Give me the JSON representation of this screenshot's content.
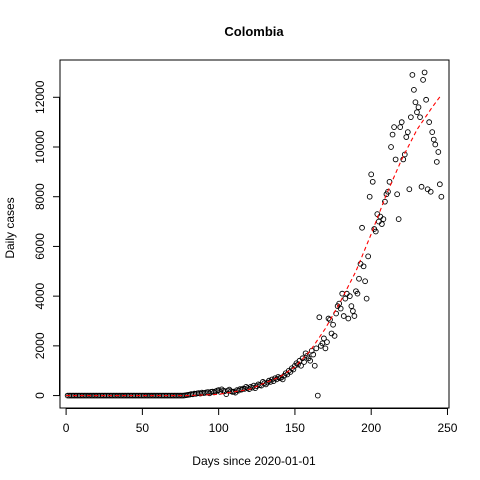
{
  "chart_data": {
    "type": "scatter",
    "title": "Colombia",
    "xlabel": "Days since 2020-01-01",
    "ylabel": "Daily cases",
    "xlim": [
      -4,
      251
    ],
    "ylim": [
      -500,
      13500
    ],
    "xticks": [
      0,
      50,
      100,
      150,
      200,
      250
    ],
    "yticks": [
      0,
      2000,
      4000,
      6000,
      8000,
      10000,
      12000
    ],
    "x_tick_labels": [
      "0",
      "50",
      "100",
      "150",
      "200",
      "250"
    ],
    "y_tick_labels": [
      "0",
      "2000",
      "4000",
      "6000",
      "8000",
      "10000",
      "12000"
    ],
    "grid": false,
    "points": [
      [
        1,
        0
      ],
      [
        2,
        0
      ],
      [
        3,
        0
      ],
      [
        4,
        0
      ],
      [
        5,
        0
      ],
      [
        6,
        0
      ],
      [
        7,
        0
      ],
      [
        8,
        0
      ],
      [
        9,
        0
      ],
      [
        10,
        0
      ],
      [
        11,
        0
      ],
      [
        12,
        0
      ],
      [
        13,
        0
      ],
      [
        14,
        0
      ],
      [
        15,
        0
      ],
      [
        16,
        0
      ],
      [
        17,
        0
      ],
      [
        18,
        0
      ],
      [
        19,
        0
      ],
      [
        20,
        0
      ],
      [
        21,
        0
      ],
      [
        22,
        0
      ],
      [
        23,
        0
      ],
      [
        24,
        0
      ],
      [
        25,
        0
      ],
      [
        26,
        0
      ],
      [
        27,
        0
      ],
      [
        28,
        0
      ],
      [
        29,
        0
      ],
      [
        30,
        0
      ],
      [
        31,
        0
      ],
      [
        32,
        0
      ],
      [
        33,
        0
      ],
      [
        34,
        0
      ],
      [
        35,
        0
      ],
      [
        36,
        0
      ],
      [
        37,
        0
      ],
      [
        38,
        0
      ],
      [
        39,
        0
      ],
      [
        40,
        0
      ],
      [
        41,
        0
      ],
      [
        42,
        0
      ],
      [
        43,
        0
      ],
      [
        44,
        0
      ],
      [
        45,
        0
      ],
      [
        46,
        0
      ],
      [
        47,
        0
      ],
      [
        48,
        0
      ],
      [
        49,
        0
      ],
      [
        50,
        0
      ],
      [
        51,
        0
      ],
      [
        52,
        0
      ],
      [
        53,
        0
      ],
      [
        54,
        0
      ],
      [
        55,
        0
      ],
      [
        56,
        0
      ],
      [
        57,
        0
      ],
      [
        58,
        0
      ],
      [
        59,
        0
      ],
      [
        60,
        0
      ],
      [
        61,
        0
      ],
      [
        62,
        0
      ],
      [
        63,
        0
      ],
      [
        64,
        0
      ],
      [
        65,
        0
      ],
      [
        66,
        0
      ],
      [
        67,
        0
      ],
      [
        68,
        0
      ],
      [
        69,
        0
      ],
      [
        70,
        0
      ],
      [
        71,
        0
      ],
      [
        72,
        0
      ],
      [
        73,
        0
      ],
      [
        74,
        0
      ],
      [
        75,
        0
      ],
      [
        76,
        0
      ],
      [
        77,
        0
      ],
      [
        78,
        10
      ],
      [
        79,
        20
      ],
      [
        80,
        30
      ],
      [
        81,
        40
      ],
      [
        82,
        60
      ],
      [
        83,
        50
      ],
      [
        84,
        80
      ],
      [
        85,
        70
      ],
      [
        86,
        90
      ],
      [
        87,
        100
      ],
      [
        88,
        80
      ],
      [
        89,
        120
      ],
      [
        90,
        100
      ],
      [
        91,
        110
      ],
      [
        92,
        130
      ],
      [
        93,
        140
      ],
      [
        94,
        90
      ],
      [
        95,
        150
      ],
      [
        96,
        160
      ],
      [
        97,
        130
      ],
      [
        98,
        170
      ],
      [
        99,
        200
      ],
      [
        100,
        220
      ],
      [
        101,
        150
      ],
      [
        102,
        250
      ],
      [
        103,
        200
      ],
      [
        104,
        180
      ],
      [
        105,
        60
      ],
      [
        106,
        200
      ],
      [
        107,
        240
      ],
      [
        108,
        180
      ],
      [
        109,
        150
      ],
      [
        110,
        160
      ],
      [
        111,
        120
      ],
      [
        112,
        220
      ],
      [
        113,
        200
      ],
      [
        114,
        260
      ],
      [
        115,
        240
      ],
      [
        116,
        280
      ],
      [
        117,
        270
      ],
      [
        118,
        350
      ],
      [
        119,
        300
      ],
      [
        120,
        260
      ],
      [
        121,
        350
      ],
      [
        122,
        320
      ],
      [
        123,
        400
      ],
      [
        124,
        300
      ],
      [
        125,
        380
      ],
      [
        126,
        450
      ],
      [
        127,
        420
      ],
      [
        128,
        400
      ],
      [
        129,
        550
      ],
      [
        130,
        500
      ],
      [
        131,
        450
      ],
      [
        132,
        520
      ],
      [
        133,
        600
      ],
      [
        134,
        550
      ],
      [
        135,
        650
      ],
      [
        136,
        580
      ],
      [
        137,
        700
      ],
      [
        138,
        650
      ],
      [
        139,
        750
      ],
      [
        140,
        700
      ],
      [
        141,
        720
      ],
      [
        142,
        650
      ],
      [
        143,
        800
      ],
      [
        144,
        900
      ],
      [
        145,
        850
      ],
      [
        146,
        1000
      ],
      [
        147,
        950
      ],
      [
        148,
        1100
      ],
      [
        149,
        1050
      ],
      [
        150,
        1200
      ],
      [
        151,
        1300
      ],
      [
        152,
        1250
      ],
      [
        153,
        1400
      ],
      [
        154,
        1200
      ],
      [
        155,
        1500
      ],
      [
        156,
        1350
      ],
      [
        157,
        1700
      ],
      [
        158,
        1600
      ],
      [
        159,
        1500
      ],
      [
        160,
        1400
      ],
      [
        161,
        1800
      ],
      [
        162,
        1650
      ],
      [
        163,
        1200
      ],
      [
        164,
        1900
      ],
      [
        165,
        0
      ],
      [
        166,
        3150
      ],
      [
        167,
        2000
      ],
      [
        168,
        2100
      ],
      [
        169,
        2300
      ],
      [
        170,
        1900
      ],
      [
        171,
        2150
      ],
      [
        172,
        3100
      ],
      [
        173,
        3050
      ],
      [
        174,
        2500
      ],
      [
        175,
        2850
      ],
      [
        176,
        2400
      ],
      [
        177,
        3300
      ],
      [
        178,
        3600
      ],
      [
        179,
        3700
      ],
      [
        180,
        3500
      ],
      [
        181,
        4100
      ],
      [
        182,
        3200
      ],
      [
        183,
        3900
      ],
      [
        184,
        4100
      ],
      [
        185,
        3100
      ],
      [
        186,
        4000
      ],
      [
        187,
        3600
      ],
      [
        188,
        3400
      ],
      [
        189,
        3200
      ],
      [
        190,
        4200
      ],
      [
        191,
        4100
      ],
      [
        192,
        4700
      ],
      [
        193,
        5300
      ],
      [
        194,
        6750
      ],
      [
        195,
        5200
      ],
      [
        196,
        4600
      ],
      [
        197,
        3900
      ],
      [
        198,
        5600
      ],
      [
        199,
        8000
      ],
      [
        200,
        8900
      ],
      [
        201,
        8600
      ],
      [
        202,
        6700
      ],
      [
        203,
        6600
      ],
      [
        204,
        7300
      ],
      [
        205,
        7000
      ],
      [
        206,
        7200
      ],
      [
        207,
        6900
      ],
      [
        208,
        7100
      ],
      [
        209,
        7800
      ],
      [
        210,
        8100
      ],
      [
        211,
        8200
      ],
      [
        212,
        8600
      ],
      [
        213,
        10000
      ],
      [
        214,
        10500
      ],
      [
        215,
        10800
      ],
      [
        216,
        9500
      ],
      [
        217,
        8100
      ],
      [
        218,
        7100
      ],
      [
        219,
        10800
      ],
      [
        220,
        11000
      ],
      [
        221,
        9500
      ],
      [
        222,
        9700
      ],
      [
        223,
        10400
      ],
      [
        224,
        10600
      ],
      [
        225,
        8300
      ],
      [
        226,
        11200
      ],
      [
        227,
        12900
      ],
      [
        228,
        12300
      ],
      [
        229,
        11800
      ],
      [
        230,
        11400
      ],
      [
        231,
        11600
      ],
      [
        232,
        11200
      ],
      [
        233,
        8400
      ],
      [
        234,
        12700
      ],
      [
        235,
        13000
      ],
      [
        236,
        11900
      ],
      [
        237,
        8300
      ],
      [
        238,
        11000
      ],
      [
        239,
        8200
      ],
      [
        240,
        10600
      ],
      [
        241,
        10300
      ],
      [
        242,
        10100
      ],
      [
        243,
        9400
      ],
      [
        244,
        9800
      ],
      [
        245,
        8500
      ],
      [
        246,
        8000
      ]
    ],
    "trend": {
      "style": "dashed",
      "color": "#ff0000",
      "points": [
        [
          0,
          0
        ],
        [
          40,
          0
        ],
        [
          80,
          0
        ],
        [
          100,
          50
        ],
        [
          120,
          250
        ],
        [
          140,
          750
        ],
        [
          150,
          1150
        ],
        [
          160,
          1800
        ],
        [
          170,
          2700
        ],
        [
          180,
          3800
        ],
        [
          190,
          5000
        ],
        [
          200,
          6500
        ],
        [
          210,
          8100
        ],
        [
          220,
          9500
        ],
        [
          230,
          10700
        ],
        [
          240,
          11600
        ],
        [
          246,
          12100
        ]
      ]
    },
    "point_color": "#000000"
  }
}
